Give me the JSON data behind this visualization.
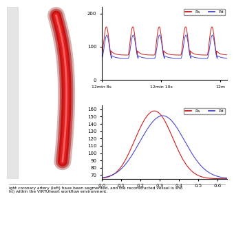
{
  "top_plot": {
    "title": "",
    "legend": [
      "Pa",
      "Pd"
    ],
    "legend_colors": [
      "#cc0000",
      "#3333cc"
    ],
    "ylim": [
      0,
      220
    ],
    "yticks": [
      0,
      100,
      200
    ],
    "xlabel_ticks": [
      "12min 8s",
      "12min 10s",
      "12m"
    ],
    "num_cycles": 5,
    "Pa_amp": 85,
    "Pa_base": 75,
    "Pd_amp": 70,
    "Pd_base": 65,
    "period": 1.2
  },
  "bottom_plot": {
    "title": "",
    "legend": [
      "Pa",
      "Pd"
    ],
    "legend_colors": [
      "#cc0000",
      "#3333cc"
    ],
    "ylim": [
      65,
      165
    ],
    "yticks": [
      70,
      80,
      90,
      100,
      110,
      120,
      130,
      140,
      150,
      160
    ],
    "xticks": [
      0.0,
      0.1,
      0.2,
      0.3,
      0.4,
      0.5,
      0.6
    ],
    "xlabel_ticks": [
      "0.0",
      "0.1",
      "0.2",
      "0.3",
      "0.4",
      "0.5",
      "0.6"
    ]
  },
  "caption_text": "ight coronary artery (left) have been segmented, and the reconstructed vessel is sho\nht) within the VIRTUheart workflow environment.",
  "background_color": "#ffffff"
}
